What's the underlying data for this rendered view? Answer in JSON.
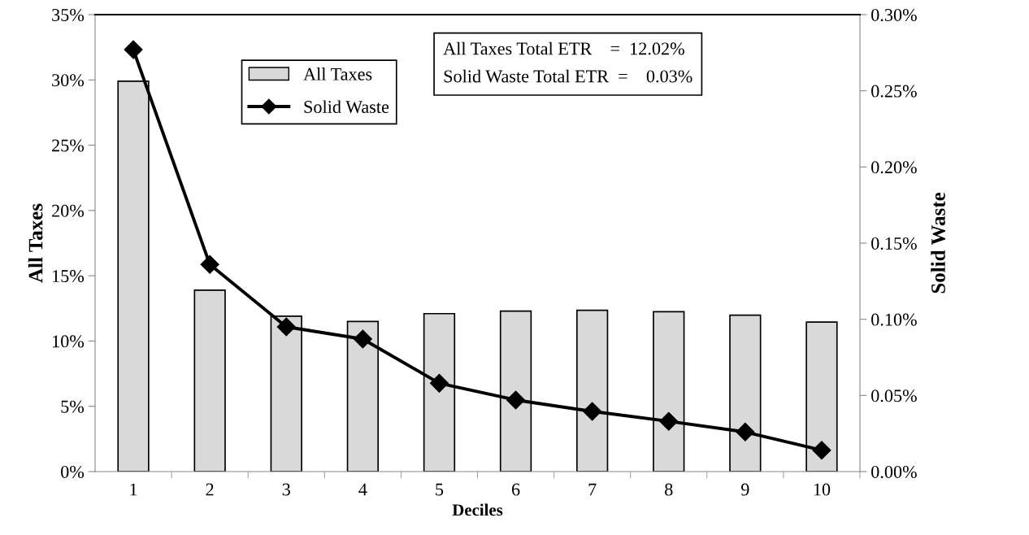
{
  "chart_data": {
    "type": "bar",
    "xlabel": "Deciles",
    "ylabel": "All Taxes",
    "y2label": "Solid Waste",
    "categories": [
      "1",
      "2",
      "3",
      "4",
      "5",
      "6",
      "7",
      "8",
      "9",
      "10"
    ],
    "series": [
      {
        "name": "All Taxes",
        "color": "#d9d9d9",
        "values": [
          29.9,
          13.9,
          11.9,
          11.5,
          12.1,
          12.29,
          12.35,
          12.25,
          11.98,
          11.45
        ]
      },
      {
        "name": "Solid Waste",
        "type": "line",
        "axis": "y2",
        "color": "#000000",
        "marker": "diamond",
        "values": [
          0.277,
          0.136,
          0.095,
          0.087,
          0.058,
          0.047,
          0.0395,
          0.033,
          0.026,
          0.014
        ]
      }
    ],
    "ylim": [
      0,
      35
    ],
    "yticks": [
      {
        "value": 0,
        "label": "0%"
      },
      {
        "value": 5,
        "label": "5%"
      },
      {
        "value": 10,
        "label": "10%"
      },
      {
        "value": 15,
        "label": "15%"
      },
      {
        "value": 20,
        "label": "20%"
      },
      {
        "value": 25,
        "label": "25%"
      },
      {
        "value": 30,
        "label": "30%"
      },
      {
        "value": 35,
        "label": "35%"
      }
    ],
    "y2lim": [
      0,
      0.3
    ],
    "y2ticks": [
      {
        "value": 0,
        "label": "0.00%"
      },
      {
        "value": 0.05,
        "label": "0.05%"
      },
      {
        "value": 0.1,
        "label": "0.10%"
      },
      {
        "value": 0.15,
        "label": "0.15%"
      },
      {
        "value": 0.2,
        "label": "0.20%"
      },
      {
        "value": 0.25,
        "label": "0.25%"
      },
      {
        "value": 0.3,
        "label": "0.30%"
      }
    ],
    "annotations": [
      "All Taxes Total ETR    =  12.02%\nSolid Waste Total ETR  =    0.03%"
    ],
    "legend": "top",
    "grid": false
  }
}
